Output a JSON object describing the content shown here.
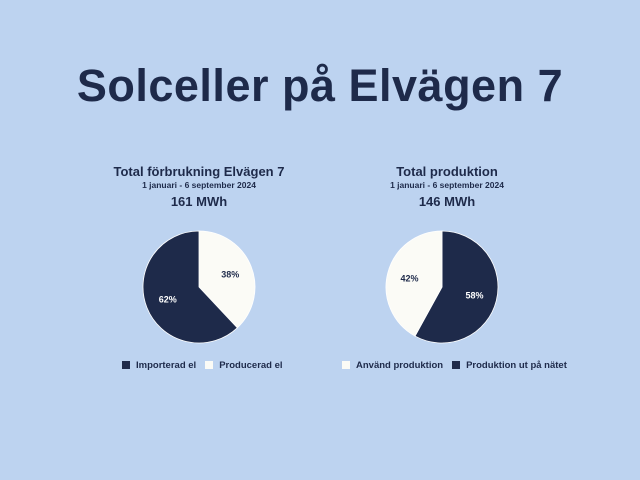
{
  "page": {
    "title": "Solceller på Elvägen 7"
  },
  "colors": {
    "background": "#bdd3f0",
    "dark": "#1e2a4a",
    "light": "#fbfbf6"
  },
  "chart_data": [
    {
      "type": "pie",
      "title": "Total förbrukning Elvägen 7",
      "subtitle": "1 januari - 6 september 2024",
      "total_label": "161 MWh",
      "slices": [
        {
          "label": "Producerad el",
          "value": 38,
          "value_label": "38%",
          "color": "#fbfbf6"
        },
        {
          "label": "Importerad el",
          "value": 62,
          "value_label": "62%",
          "color": "#1e2a4a"
        }
      ],
      "legend": [
        "Importerad el",
        "Producerad el"
      ],
      "legend_position": "bottom"
    },
    {
      "type": "pie",
      "title": "Total produktion",
      "subtitle": "1 januari - 6 september 2024",
      "total_label": "146 MWh",
      "slices": [
        {
          "label": "Produktion ut på nätet",
          "value": 58,
          "value_label": "58%",
          "color": "#1e2a4a"
        },
        {
          "label": "Använd produktion",
          "value": 42,
          "value_label": "42%",
          "color": "#fbfbf6"
        }
      ],
      "legend": [
        "Använd produktion",
        "Produktion ut på nätet"
      ],
      "legend_position": "bottom"
    }
  ]
}
